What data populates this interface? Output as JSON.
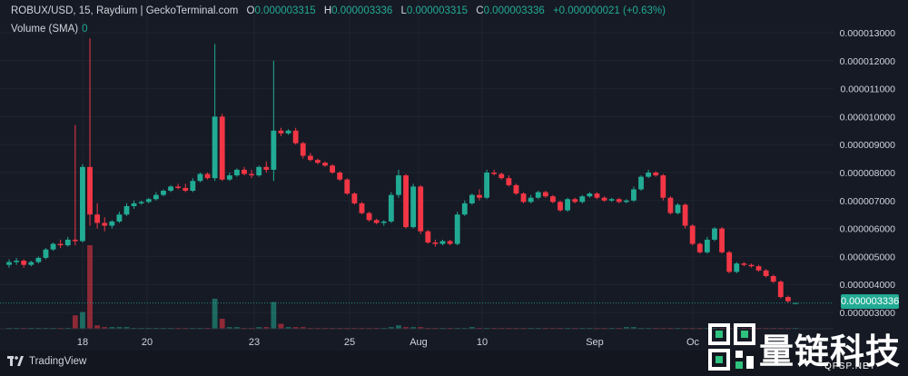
{
  "header": {
    "symbol": "ROBUX/USD, 15, Raydium | GeckoTerminal.com",
    "open_label": "O",
    "open_value": "0.000003315",
    "high_label": "H",
    "high_value": "0.000003336",
    "low_label": "L",
    "low_value": "0.000003315",
    "close_label": "C",
    "close_value": "0.000003336",
    "change": "+0.000000021 (+0.63%)"
  },
  "volume_legend": {
    "label": "Volume (SMA)",
    "value": "0"
  },
  "price_badge": "0.000003336",
  "footer": {
    "brand": "TradingView"
  },
  "watermark": {
    "text": "量链科技",
    "sub": "QFSP.NET"
  },
  "colors": {
    "background": "#161a25",
    "up": "#22ab94",
    "down": "#f23645",
    "grid": "#1f2430",
    "text": "#d1d4dc"
  },
  "chart_data": {
    "type": "candlestick",
    "y_axis_labels": [
      "0.000013000",
      "0.000012000",
      "0.000011000",
      "0.000010000",
      "0.000009000",
      "0.000008000",
      "0.000007000",
      "0.000006000",
      "0.000005000",
      "0.000004000",
      "0.000003000"
    ],
    "y_tick_values": [
      1.3e-05,
      1.2e-05,
      1.1e-05,
      1e-05,
      9e-06,
      8e-06,
      7e-06,
      6e-06,
      5e-06,
      4e-06,
      3e-06
    ],
    "ylim": [
      2.9e-06,
      1.36e-05
    ],
    "x_axis_labels": [
      "18",
      "20",
      "23",
      "25",
      "Aug",
      "10",
      "Sep",
      "Oc"
    ],
    "last_price": 3.336e-06,
    "candles": [
      {
        "o": 4.7e-06,
        "h": 4.9e-06,
        "l": 4.6e-06,
        "c": 4.8e-06
      },
      {
        "o": 4.8e-06,
        "h": 4.95e-06,
        "l": 4.7e-06,
        "c": 4.85e-06
      },
      {
        "o": 4.85e-06,
        "h": 4.9e-06,
        "l": 4.6e-06,
        "c": 4.7e-06
      },
      {
        "o": 4.7e-06,
        "h": 4.85e-06,
        "l": 4.65e-06,
        "c": 4.8e-06
      },
      {
        "o": 4.8e-06,
        "h": 5e-06,
        "l": 4.75e-06,
        "c": 4.95e-06
      },
      {
        "o": 4.95e-06,
        "h": 5.3e-06,
        "l": 4.9e-06,
        "c": 5.25e-06
      },
      {
        "o": 5.25e-06,
        "h": 5.5e-06,
        "l": 5.2e-06,
        "c": 5.45e-06
      },
      {
        "o": 5.45e-06,
        "h": 5.6e-06,
        "l": 5.3e-06,
        "c": 5.4e-06
      },
      {
        "o": 5.4e-06,
        "h": 5.7e-06,
        "l": 5.35e-06,
        "c": 5.6e-06
      },
      {
        "o": 5.6e-06,
        "h": 9.7e-06,
        "l": 5.4e-06,
        "c": 5.55e-06
      },
      {
        "o": 5.55e-06,
        "h": 8.3e-06,
        "l": 5.5e-06,
        "c": 8.2e-06
      },
      {
        "o": 8.2e-06,
        "h": 1.28e-05,
        "l": 6.1e-06,
        "c": 6.5e-06
      },
      {
        "o": 6.5e-06,
        "h": 6.9e-06,
        "l": 6e-06,
        "c": 6.2e-06
      },
      {
        "o": 6.2e-06,
        "h": 6.4e-06,
        "l": 5.9e-06,
        "c": 6.1e-06
      },
      {
        "o": 6.1e-06,
        "h": 6.3e-06,
        "l": 6e-06,
        "c": 6.25e-06
      },
      {
        "o": 6.25e-06,
        "h": 6.6e-06,
        "l": 6.2e-06,
        "c": 6.5e-06
      },
      {
        "o": 6.5e-06,
        "h": 6.9e-06,
        "l": 6.45e-06,
        "c": 6.8e-06
      },
      {
        "o": 6.8e-06,
        "h": 7e-06,
        "l": 6.7e-06,
        "c": 6.9e-06
      },
      {
        "o": 6.9e-06,
        "h": 7e-06,
        "l": 6.85e-06,
        "c": 6.95e-06
      },
      {
        "o": 6.95e-06,
        "h": 7.1e-06,
        "l": 6.9e-06,
        "c": 7.05e-06
      },
      {
        "o": 7.05e-06,
        "h": 7.3e-06,
        "l": 7e-06,
        "c": 7.2e-06
      },
      {
        "o": 7.2e-06,
        "h": 7.4e-06,
        "l": 7.15e-06,
        "c": 7.35e-06
      },
      {
        "o": 7.35e-06,
        "h": 7.55e-06,
        "l": 7.3e-06,
        "c": 7.5e-06
      },
      {
        "o": 7.5e-06,
        "h": 7.6e-06,
        "l": 7.4e-06,
        "c": 7.45e-06
      },
      {
        "o": 7.45e-06,
        "h": 7.6e-06,
        "l": 7.3e-06,
        "c": 7.35e-06
      },
      {
        "o": 7.35e-06,
        "h": 7.8e-06,
        "l": 7.3e-06,
        "c": 7.7e-06
      },
      {
        "o": 7.7e-06,
        "h": 8e-06,
        "l": 7.65e-06,
        "c": 7.95e-06
      },
      {
        "o": 7.95e-06,
        "h": 8e-06,
        "l": 7.75e-06,
        "c": 7.8e-06
      },
      {
        "o": 7.8e-06,
        "h": 1.26e-05,
        "l": 7.7e-06,
        "c": 1e-05
      },
      {
        "o": 1e-05,
        "h": 1.01e-05,
        "l": 7.7e-06,
        "c": 7.75e-06
      },
      {
        "o": 7.75e-06,
        "h": 8e-06,
        "l": 7.7e-06,
        "c": 7.9e-06
      },
      {
        "o": 7.9e-06,
        "h": 8.15e-06,
        "l": 7.85e-06,
        "c": 8.1e-06
      },
      {
        "o": 8.1e-06,
        "h": 8.2e-06,
        "l": 7.9e-06,
        "c": 7.95e-06
      },
      {
        "o": 7.95e-06,
        "h": 8.1e-06,
        "l": 7.8e-06,
        "c": 7.9e-06
      },
      {
        "o": 7.9e-06,
        "h": 8.25e-06,
        "l": 7.85e-06,
        "c": 8.2e-06
      },
      {
        "o": 8.2e-06,
        "h": 8.4e-06,
        "l": 8e-06,
        "c": 8.1e-06
      },
      {
        "o": 8.1e-06,
        "h": 1.2e-05,
        "l": 7.7e-06,
        "c": 9.5e-06
      },
      {
        "o": 9.5e-06,
        "h": 9.6e-06,
        "l": 9.3e-06,
        "c": 9.4e-06
      },
      {
        "o": 9.4e-06,
        "h": 9.55e-06,
        "l": 9.35e-06,
        "c": 9.5e-06
      },
      {
        "o": 9.5e-06,
        "h": 9.6e-06,
        "l": 9e-06,
        "c": 9.05e-06
      },
      {
        "o": 9.05e-06,
        "h": 9.1e-06,
        "l": 8.5e-06,
        "c": 8.6e-06
      },
      {
        "o": 8.6e-06,
        "h": 8.7e-06,
        "l": 8.4e-06,
        "c": 8.45e-06
      },
      {
        "o": 8.45e-06,
        "h": 8.5e-06,
        "l": 8.3e-06,
        "c": 8.35e-06
      },
      {
        "o": 8.35e-06,
        "h": 8.4e-06,
        "l": 8.2e-06,
        "c": 8.25e-06
      },
      {
        "o": 8.25e-06,
        "h": 8.3e-06,
        "l": 7.95e-06,
        "c": 8e-06
      },
      {
        "o": 8e-06,
        "h": 8.05e-06,
        "l": 7.7e-06,
        "c": 7.75e-06
      },
      {
        "o": 7.75e-06,
        "h": 7.8e-06,
        "l": 7.2e-06,
        "c": 7.25e-06
      },
      {
        "o": 7.25e-06,
        "h": 7.3e-06,
        "l": 6.85e-06,
        "c": 6.9e-06
      },
      {
        "o": 6.9e-06,
        "h": 6.95e-06,
        "l": 6.5e-06,
        "c": 6.55e-06
      },
      {
        "o": 6.55e-06,
        "h": 6.6e-06,
        "l": 6.25e-06,
        "c": 6.3e-06
      },
      {
        "o": 6.3e-06,
        "h": 6.35e-06,
        "l": 6.15e-06,
        "c": 6.2e-06
      },
      {
        "o": 6.2e-06,
        "h": 6.3e-06,
        "l": 6.1e-06,
        "c": 6.25e-06
      },
      {
        "o": 6.25e-06,
        "h": 7.3e-06,
        "l": 6.2e-06,
        "c": 7.2e-06
      },
      {
        "o": 7.2e-06,
        "h": 8.1e-06,
        "l": 7.1e-06,
        "c": 7.9e-06
      },
      {
        "o": 7.9e-06,
        "h": 7.95e-06,
        "l": 6e-06,
        "c": 6.05e-06
      },
      {
        "o": 6.05e-06,
        "h": 7.6e-06,
        "l": 6e-06,
        "c": 7.5e-06
      },
      {
        "o": 7.5e-06,
        "h": 7.55e-06,
        "l": 5.8e-06,
        "c": 5.9e-06
      },
      {
        "o": 5.9e-06,
        "h": 5.95e-06,
        "l": 5.45e-06,
        "c": 5.5e-06
      },
      {
        "o": 5.5e-06,
        "h": 5.6e-06,
        "l": 5.35e-06,
        "c": 5.45e-06
      },
      {
        "o": 5.45e-06,
        "h": 5.6e-06,
        "l": 5.4e-06,
        "c": 5.55e-06
      },
      {
        "o": 5.55e-06,
        "h": 5.6e-06,
        "l": 5.4e-06,
        "c": 5.45e-06
      },
      {
        "o": 5.45e-06,
        "h": 6.6e-06,
        "l": 5.4e-06,
        "c": 6.5e-06
      },
      {
        "o": 6.5e-06,
        "h": 7e-06,
        "l": 6.45e-06,
        "c": 6.9e-06
      },
      {
        "o": 6.9e-06,
        "h": 7.25e-06,
        "l": 6.85e-06,
        "c": 7.2e-06
      },
      {
        "o": 7.2e-06,
        "h": 7.4e-06,
        "l": 7e-06,
        "c": 7.1e-06
      },
      {
        "o": 7.1e-06,
        "h": 8.1e-06,
        "l": 7.05e-06,
        "c": 8e-06
      },
      {
        "o": 8e-06,
        "h": 8.1e-06,
        "l": 7.9e-06,
        "c": 7.95e-06
      },
      {
        "o": 7.95e-06,
        "h": 8e-06,
        "l": 7.75e-06,
        "c": 7.8e-06
      },
      {
        "o": 7.8e-06,
        "h": 7.9e-06,
        "l": 7.5e-06,
        "c": 7.55e-06
      },
      {
        "o": 7.55e-06,
        "h": 7.6e-06,
        "l": 7.2e-06,
        "c": 7.25e-06
      },
      {
        "o": 7.25e-06,
        "h": 7.3e-06,
        "l": 6.9e-06,
        "c": 6.95e-06
      },
      {
        "o": 6.95e-06,
        "h": 7.2e-06,
        "l": 6.9e-06,
        "c": 7.1e-06
      },
      {
        "o": 7.1e-06,
        "h": 7.35e-06,
        "l": 7.05e-06,
        "c": 7.3e-06
      },
      {
        "o": 7.3e-06,
        "h": 7.35e-06,
        "l": 7.1e-06,
        "c": 7.15e-06
      },
      {
        "o": 7.15e-06,
        "h": 7.2e-06,
        "l": 6.9e-06,
        "c": 6.95e-06
      },
      {
        "o": 6.95e-06,
        "h": 7e-06,
        "l": 6.6e-06,
        "c": 6.65e-06
      },
      {
        "o": 6.65e-06,
        "h": 7.1e-06,
        "l": 6.6e-06,
        "c": 7.05e-06
      },
      {
        "o": 7.05e-06,
        "h": 7.1e-06,
        "l": 6.9e-06,
        "c": 6.95e-06
      },
      {
        "o": 6.95e-06,
        "h": 7.2e-06,
        "l": 6.9e-06,
        "c": 7.15e-06
      },
      {
        "o": 7.15e-06,
        "h": 7.3e-06,
        "l": 7.1e-06,
        "c": 7.25e-06
      },
      {
        "o": 7.25e-06,
        "h": 7.3e-06,
        "l": 7.05e-06,
        "c": 7.1e-06
      },
      {
        "o": 7.1e-06,
        "h": 7.15e-06,
        "l": 6.95e-06,
        "c": 7e-06
      },
      {
        "o": 7e-06,
        "h": 7.1e-06,
        "l": 6.95e-06,
        "c": 7.05e-06
      },
      {
        "o": 7.05e-06,
        "h": 7.1e-06,
        "l": 6.9e-06,
        "c": 6.95e-06
      },
      {
        "o": 6.95e-06,
        "h": 7.05e-06,
        "l": 6.9e-06,
        "c": 7e-06
      },
      {
        "o": 7e-06,
        "h": 7.5e-06,
        "l": 6.95e-06,
        "c": 7.4e-06
      },
      {
        "o": 7.4e-06,
        "h": 7.9e-06,
        "l": 7.35e-06,
        "c": 7.85e-06
      },
      {
        "o": 7.85e-06,
        "h": 8.1e-06,
        "l": 7.8e-06,
        "c": 8e-06
      },
      {
        "o": 8e-06,
        "h": 8.05e-06,
        "l": 7.85e-06,
        "c": 7.9e-06
      },
      {
        "o": 7.9e-06,
        "h": 7.95e-06,
        "l": 7e-06,
        "c": 7.1e-06
      },
      {
        "o": 7.1e-06,
        "h": 7.15e-06,
        "l": 6.5e-06,
        "c": 6.55e-06
      },
      {
        "o": 6.55e-06,
        "h": 6.9e-06,
        "l": 6.5e-06,
        "c": 6.85e-06
      },
      {
        "o": 6.85e-06,
        "h": 6.9e-06,
        "l": 6e-06,
        "c": 6.1e-06
      },
      {
        "o": 6.1e-06,
        "h": 6.15e-06,
        "l": 5.4e-06,
        "c": 5.45e-06
      },
      {
        "o": 5.45e-06,
        "h": 5.5e-06,
        "l": 5.1e-06,
        "c": 5.15e-06
      },
      {
        "o": 5.15e-06,
        "h": 5.7e-06,
        "l": 5.1e-06,
        "c": 5.6e-06
      },
      {
        "o": 5.6e-06,
        "h": 6.05e-06,
        "l": 5.55e-06,
        "c": 6e-06
      },
      {
        "o": 6e-06,
        "h": 6.05e-06,
        "l": 5.1e-06,
        "c": 5.15e-06
      },
      {
        "o": 5.15e-06,
        "h": 5.2e-06,
        "l": 4.4e-06,
        "c": 4.45e-06
      },
      {
        "o": 4.45e-06,
        "h": 4.8e-06,
        "l": 4.4e-06,
        "c": 4.75e-06
      },
      {
        "o": 4.75e-06,
        "h": 4.8e-06,
        "l": 4.65e-06,
        "c": 4.7e-06
      },
      {
        "o": 4.7e-06,
        "h": 4.75e-06,
        "l": 4.6e-06,
        "c": 4.65e-06
      },
      {
        "o": 4.65e-06,
        "h": 4.7e-06,
        "l": 4.45e-06,
        "c": 4.5e-06
      },
      {
        "o": 4.5e-06,
        "h": 4.55e-06,
        "l": 4.25e-06,
        "c": 4.3e-06
      },
      {
        "o": 4.3e-06,
        "h": 4.35e-06,
        "l": 4.05e-06,
        "c": 4.1e-06
      },
      {
        "o": 4.1e-06,
        "h": 4.15e-06,
        "l": 3.5e-06,
        "c": 3.55e-06
      },
      {
        "o": 3.55e-06,
        "h": 3.6e-06,
        "l": 3.35e-06,
        "c": 3.4e-06
      },
      {
        "o": 3.315e-06,
        "h": 3.336e-06,
        "l": 3.315e-06,
        "c": 3.336e-06
      }
    ],
    "volume": [
      0,
      0,
      0,
      0,
      0,
      0,
      0,
      0,
      0,
      8,
      10,
      50,
      2,
      1,
      1,
      1,
      1,
      0,
      0,
      0,
      0,
      0,
      0,
      0,
      0,
      0,
      0,
      0,
      18,
      6,
      1,
      1,
      0,
      0,
      1,
      1,
      16,
      3,
      1,
      1,
      1,
      0,
      0,
      0,
      0,
      0,
      0,
      0,
      0,
      0,
      0,
      0,
      1,
      2,
      1,
      1,
      1,
      0,
      0,
      0,
      0,
      0,
      0,
      1,
      0,
      0,
      0,
      0,
      0,
      0,
      0,
      0,
      0,
      0,
      0,
      0,
      0,
      0,
      0,
      0,
      0,
      0,
      0,
      0,
      1,
      1,
      0,
      0,
      0,
      0,
      0,
      0,
      0,
      0,
      0,
      0,
      0,
      0,
      0,
      0,
      0,
      0,
      0,
      0,
      0,
      0,
      0,
      0
    ]
  }
}
